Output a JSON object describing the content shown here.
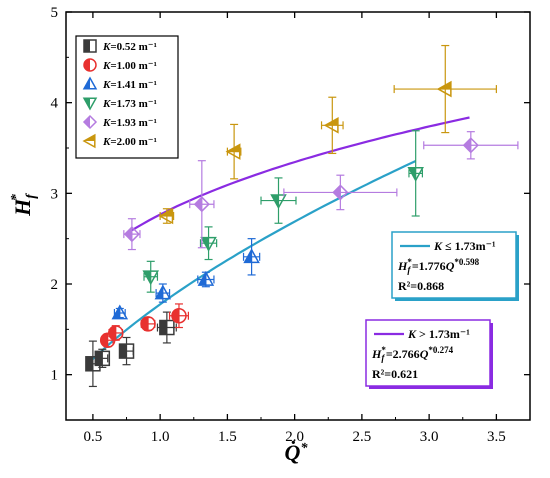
{
  "chart_data": {
    "type": "scatter",
    "xlabel": "Q̇*",
    "ylabel": "Hf*",
    "xlim": [
      0.3,
      3.75
    ],
    "ylim": [
      0.5,
      5.0
    ],
    "x_ticks": [
      "0.5",
      "1.0",
      "1.5",
      "2.0",
      "2.5",
      "3.0",
      "3.5"
    ],
    "y_ticks": [
      "1",
      "2",
      "3",
      "4",
      "5"
    ],
    "grid": false,
    "legend": "top-left",
    "series": [
      {
        "name": "K=0.52 m⁻¹",
        "color": "#3a3a3a",
        "marker": "square-half",
        "points": [
          {
            "x": 0.5,
            "y": 1.12,
            "xerr": 0.05,
            "yerr": 0.25
          },
          {
            "x": 0.57,
            "y": 1.18,
            "xerr": 0.04,
            "yerr": 0.1
          },
          {
            "x": 0.75,
            "y": 1.26,
            "xerr": 0.05,
            "yerr": 0.15
          },
          {
            "x": 1.05,
            "y": 1.52,
            "xerr": 0.07,
            "yerr": 0.17
          }
        ]
      },
      {
        "name": "K=1.00 m⁻¹",
        "color": "#e8312f",
        "marker": "circle-half",
        "points": [
          {
            "x": 0.61,
            "y": 1.38,
            "xerr": 0.04,
            "yerr": 0.07
          },
          {
            "x": 0.67,
            "y": 1.46,
            "xerr": 0.05,
            "yerr": 0.08
          },
          {
            "x": 0.91,
            "y": 1.56,
            "xerr": 0.05,
            "yerr": 0.07
          },
          {
            "x": 1.14,
            "y": 1.65,
            "xerr": 0.07,
            "yerr": 0.13
          }
        ]
      },
      {
        "name": "K=1.41 m⁻¹",
        "color": "#1f6ad6",
        "marker": "triangle-up-half",
        "points": [
          {
            "x": 0.7,
            "y": 1.68,
            "xerr": 0.04,
            "yerr": 0.05
          },
          {
            "x": 1.02,
            "y": 1.9,
            "xerr": 0.05,
            "yerr": 0.1
          },
          {
            "x": 1.34,
            "y": 2.05,
            "xerr": 0.06,
            "yerr": 0.08
          },
          {
            "x": 1.68,
            "y": 2.3,
            "xerr": 0.06,
            "yerr": 0.2
          }
        ]
      },
      {
        "name": "K=1.73 m⁻¹",
        "color": "#2e9e6a",
        "marker": "triangle-down-half",
        "points": [
          {
            "x": 0.93,
            "y": 2.08,
            "xerr": 0.05,
            "yerr": 0.17
          },
          {
            "x": 1.36,
            "y": 2.45,
            "xerr": 0.06,
            "yerr": 0.18
          },
          {
            "x": 1.88,
            "y": 2.92,
            "xerr": 0.13,
            "yerr": 0.25
          },
          {
            "x": 2.9,
            "y": 3.22,
            "xerr": 0.05,
            "yerr": 0.47
          }
        ]
      },
      {
        "name": "K=1.93 m⁻¹",
        "color": "#b57ce0",
        "marker": "diamond-half",
        "points": [
          {
            "x": 0.79,
            "y": 2.55,
            "xerr": 0.06,
            "yerr": 0.17
          },
          {
            "x": 1.31,
            "y": 2.88,
            "xerr": 0.09,
            "yerr": 0.48
          },
          {
            "x": 2.34,
            "y": 3.01,
            "xerr": 0.42,
            "yerr": 0.19
          },
          {
            "x": 3.31,
            "y": 3.53,
            "xerr": 0.35,
            "yerr": 0.15
          }
        ]
      },
      {
        "name": "K=2.00 m⁻¹",
        "color": "#c9960e",
        "marker": "triangle-left-half",
        "points": [
          {
            "x": 1.05,
            "y": 2.75,
            "xerr": 0.05,
            "yerr": 0.08
          },
          {
            "x": 1.55,
            "y": 3.46,
            "xerr": 0.05,
            "yerr": 0.3
          },
          {
            "x": 2.28,
            "y": 3.75,
            "xerr": 0.08,
            "yerr": 0.31
          },
          {
            "x": 3.12,
            "y": 4.15,
            "xerr": 0.38,
            "yerr": 0.48
          }
        ]
      }
    ],
    "fits": [
      {
        "condition": "K ≤ 1.73m⁻¹",
        "equation": "Hf*=1.776Q*0.598",
        "r2": "R²=0.868",
        "coef": 1.776,
        "exponent": 0.598,
        "x_range": [
          0.5,
          2.9
        ],
        "color": "#2aa1c8"
      },
      {
        "condition": "K > 1.73m⁻¹",
        "equation": "Hf*=2.766Q*0.274",
        "r2": "R²=0.621",
        "coef": 2.766,
        "exponent": 0.274,
        "x_range": [
          0.79,
          3.3
        ],
        "color": "#8a2be2"
      }
    ]
  }
}
